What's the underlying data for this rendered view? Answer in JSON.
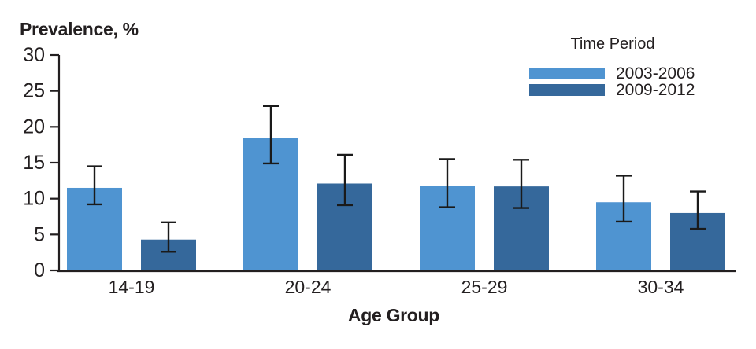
{
  "chart_data": {
    "type": "bar",
    "title": "",
    "ylabel": "Prevalence, %",
    "xlabel": "Age Group",
    "legend_title": "Time Period",
    "legend_position": "top-right",
    "grid": false,
    "categories": [
      "14-19",
      "20-24",
      "25-29",
      "30-34"
    ],
    "series": [
      {
        "name": "2003-2006",
        "color": "#4F94D1",
        "values": [
          11.5,
          18.5,
          11.8,
          9.5
        ],
        "ci_low": [
          9.2,
          14.9,
          8.8,
          6.8
        ],
        "ci_high": [
          14.5,
          22.9,
          15.5,
          13.2
        ]
      },
      {
        "name": "2009-2012",
        "color": "#35689B",
        "values": [
          4.3,
          12.1,
          11.7,
          8.0
        ],
        "ci_low": [
          2.6,
          9.1,
          8.7,
          5.8
        ],
        "ci_high": [
          6.7,
          16.1,
          15.4,
          11.0
        ]
      }
    ],
    "y_ticks": [
      0,
      5,
      10,
      15,
      20,
      25,
      30
    ],
    "ylim": [
      0,
      30
    ],
    "axis_color": "#231F20",
    "error_bar_color": "#1A1A1A"
  }
}
